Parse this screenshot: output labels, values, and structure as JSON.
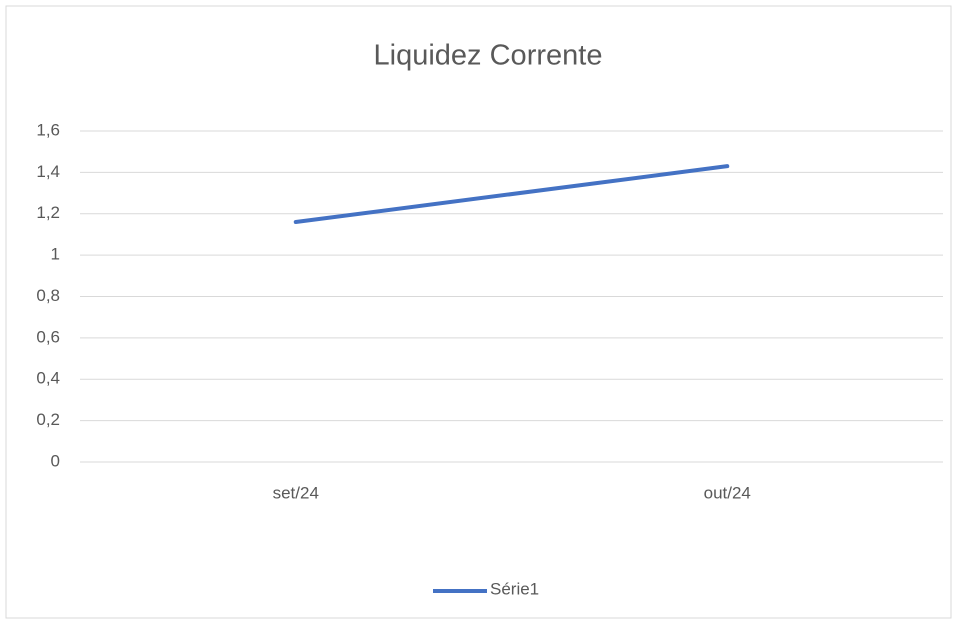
{
  "chart_data": {
    "type": "line",
    "title": "Liquidez Corrente",
    "categories": [
      "set/24",
      "out/24"
    ],
    "series": [
      {
        "name": "Série1",
        "color": "#4472c4",
        "values": [
          1.16,
          1.43
        ]
      }
    ],
    "ylim": [
      0,
      1.6
    ],
    "yticks": [
      0,
      {
        "value": 0.2,
        "label": "0,2"
      },
      {
        "value": 0.4,
        "label": "0,4"
      },
      {
        "value": 0.6,
        "label": "0,6"
      },
      {
        "value": 0.8,
        "label": "0,8"
      },
      1,
      {
        "value": 1.2,
        "label": "1,2"
      },
      {
        "value": 1.4,
        "label": "1,4"
      },
      {
        "value": 1.6,
        "label": "1,6"
      }
    ],
    "grid": true,
    "legend": "bottom"
  }
}
